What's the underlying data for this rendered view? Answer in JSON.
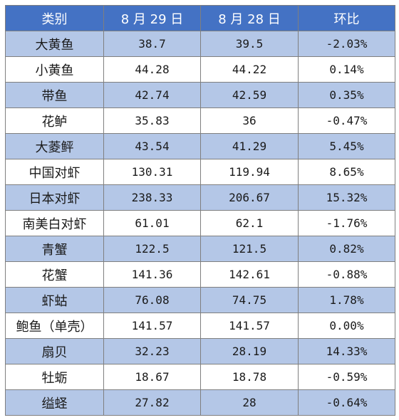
{
  "table": {
    "headers": [
      "类别",
      "8 月 29 日",
      "8 月 28 日",
      "环比"
    ],
    "rows": [
      [
        "大黄鱼",
        "38.7",
        "39.5",
        "-2.03%"
      ],
      [
        "小黄鱼",
        "44.28",
        "44.22",
        "0.14%"
      ],
      [
        "带鱼",
        "42.74",
        "42.59",
        "0.35%"
      ],
      [
        "花鲈",
        "35.83",
        "36",
        "-0.47%"
      ],
      [
        "大菱鲆",
        "43.54",
        "41.29",
        "5.45%"
      ],
      [
        "中国对虾",
        "130.31",
        "119.94",
        "8.65%"
      ],
      [
        "日本对虾",
        "238.33",
        "206.67",
        "15.32%"
      ],
      [
        "南美白对虾",
        "61.01",
        "62.1",
        "-1.76%"
      ],
      [
        "青蟹",
        "122.5",
        "121.5",
        "0.82%"
      ],
      [
        "花蟹",
        "141.36",
        "142.61",
        "-0.88%"
      ],
      [
        "虾蛄",
        "76.08",
        "74.75",
        "1.78%"
      ],
      [
        "鲍鱼（单壳）",
        "141.57",
        "141.57",
        "0.00%"
      ],
      [
        "扇贝",
        "32.23",
        "28.19",
        "14.33%"
      ],
      [
        "牡蛎",
        "18.67",
        "18.78",
        "-0.59%"
      ],
      [
        "缢蛏",
        "27.82",
        "28",
        "-0.64%"
      ]
    ]
  },
  "colors": {
    "header_bg": "#4472c4",
    "band_bg": "#b4c7e7",
    "plain_bg": "#ffffff",
    "border": "#7f7f7f"
  }
}
